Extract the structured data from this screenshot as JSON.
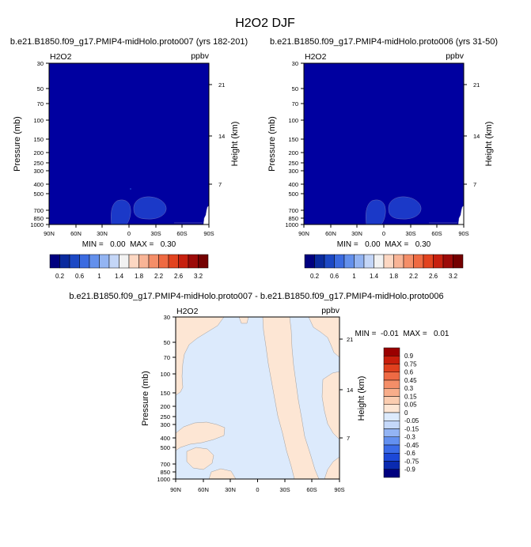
{
  "figure": {
    "title": "H2O2 DJF"
  },
  "chart_data": [
    {
      "type": "heatmap",
      "title": "b.e21.B1850.f09_g17.PMIP4-midHolo.proto007 (yrs 182-201)",
      "left_label": "H2O2",
      "right_label": "ppbv",
      "xlabel": "",
      "ylabel": "Pressure (mb)",
      "y2label": "Height (km)",
      "x_ticks": [
        "90N",
        "60N",
        "30N",
        "0",
        "30S",
        "60S",
        "90S"
      ],
      "y_ticks": [
        "30",
        "50",
        "70",
        "100",
        "150",
        "200",
        "250",
        "300",
        "400",
        "500",
        "700",
        "850",
        "1000"
      ],
      "y2_ticks": [
        "21",
        "14",
        "7"
      ],
      "stats": "MIN =   0.00  MAX =   0.30",
      "colorbar": {
        "orientation": "horizontal",
        "colors": [
          "#00007f",
          "#0a2a9e",
          "#1c48c4",
          "#3b6be0",
          "#6390ec",
          "#93b4f2",
          "#c4d6f7",
          "#f2f2f2",
          "#fcd7c2",
          "#f8b496",
          "#f48e68",
          "#ef6a42",
          "#e2431f",
          "#c7200f",
          "#9c0a08",
          "#740000"
        ],
        "labels": [
          "0.2",
          "0.6",
          "1",
          "1.4",
          "1.8",
          "2.2",
          "2.6",
          "3.2"
        ]
      },
      "field": {
        "background_color": "#0000a0",
        "contour_fill_color": "#1b39c8",
        "value_range": [
          0.0,
          0.3
        ],
        "features": [
          {
            "name": "low-level blob 1",
            "lat": [
              18,
              -3
            ],
            "pressure": [
              560,
              1000
            ]
          },
          {
            "name": "low-level blob 2",
            "lat": [
              -4,
              -46
            ],
            "pressure": [
              490,
              920
            ]
          },
          {
            "name": "south pole surface",
            "lat": [
              -83,
              -90
            ],
            "pressure": [
              660,
              1000
            ]
          }
        ]
      }
    },
    {
      "type": "heatmap",
      "title": "b.e21.B1850.f09_g17.PMIP4-midHolo.proto006 (yrs 31-50)",
      "left_label": "H2O2",
      "right_label": "ppbv",
      "xlabel": "",
      "ylabel": "Pressure (mb)",
      "y2label": "Height (km)",
      "x_ticks": [
        "90N",
        "60N",
        "30N",
        "0",
        "30S",
        "60S",
        "90S"
      ],
      "y_ticks": [
        "30",
        "50",
        "70",
        "100",
        "150",
        "200",
        "250",
        "300",
        "400",
        "500",
        "700",
        "850",
        "1000"
      ],
      "y2_ticks": [
        "21",
        "14",
        "7"
      ],
      "stats": "MIN =   0.00  MAX =   0.30",
      "colorbar": {
        "orientation": "horizontal",
        "colors": [
          "#00007f",
          "#0a2a9e",
          "#1c48c4",
          "#3b6be0",
          "#6390ec",
          "#93b4f2",
          "#c4d6f7",
          "#f2f2f2",
          "#fcd7c2",
          "#f8b496",
          "#f48e68",
          "#ef6a42",
          "#e2431f",
          "#c7200f",
          "#9c0a08",
          "#740000"
        ],
        "labels": [
          "0.2",
          "0.6",
          "1",
          "1.4",
          "1.8",
          "2.2",
          "2.6",
          "3.2"
        ]
      },
      "field": {
        "background_color": "#0000a0",
        "contour_fill_color": "#1b39c8",
        "value_range": [
          0.0,
          0.3
        ],
        "features": [
          {
            "name": "low-level blob 1",
            "lat": [
              18,
              -3
            ],
            "pressure": [
              560,
              1000
            ]
          },
          {
            "name": "low-level blob 2",
            "lat": [
              -4,
              -46
            ],
            "pressure": [
              490,
              920
            ]
          },
          {
            "name": "south pole surface",
            "lat": [
              -83,
              -90
            ],
            "pressure": [
              660,
              1000
            ]
          }
        ]
      }
    },
    {
      "type": "heatmap",
      "title": "b.e21.B1850.f09_g17.PMIP4-midHolo.proto007 - b.e21.B1850.f09_g17.PMIP4-midHolo.proto006",
      "left_label": "H2O2",
      "right_label": "ppbv",
      "xlabel": "",
      "ylabel": "Pressure (mb)",
      "y2label": "Height (km)",
      "x_ticks": [
        "90N",
        "60N",
        "30N",
        "0",
        "30S",
        "60S",
        "90S"
      ],
      "y_ticks": [
        "30",
        "50",
        "70",
        "100",
        "150",
        "200",
        "250",
        "300",
        "400",
        "500",
        "700",
        "850",
        "1000"
      ],
      "y2_ticks": [
        "21",
        "14",
        "7"
      ],
      "stats": "MIN =  -0.01  MAX =   0.01",
      "colorbar": {
        "orientation": "vertical",
        "colors": [
          "#00007f",
          "#0a2ab0",
          "#1c48d8",
          "#3b6be8",
          "#6390f0",
          "#93b4f4",
          "#c4d8fa",
          "#dceafc",
          "#fde6d4",
          "#fbcdb0",
          "#f8ad8a",
          "#f48e68",
          "#ee6a44",
          "#e0401e",
          "#c81e0c",
          "#9a0000"
        ],
        "labels": [
          "-0.9",
          "-0.75",
          "-0.6",
          "-0.45",
          "-0.3",
          "-0.15",
          "-0.05",
          "0",
          "0.05",
          "0.15",
          "0.3",
          "0.45",
          "0.6",
          "0.75",
          "0.9"
        ]
      },
      "field": {
        "background_color": "#dceafc",
        "contour_fill_color": "#fde6d4",
        "value_range": [
          -0.01,
          0.01
        ]
      }
    }
  ]
}
